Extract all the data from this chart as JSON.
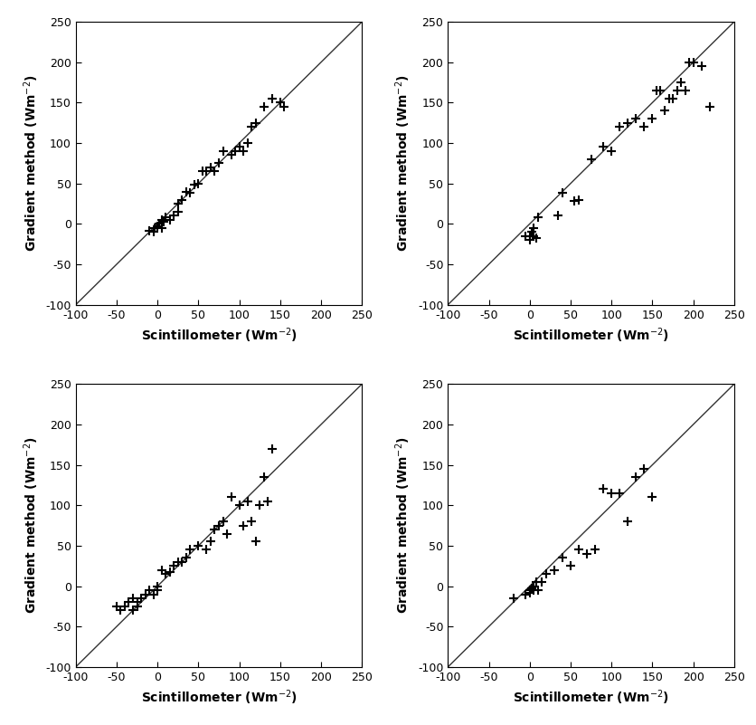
{
  "panels": [
    {
      "x": [
        -10,
        -5,
        -3,
        0,
        2,
        5,
        5,
        8,
        10,
        15,
        20,
        25,
        25,
        30,
        35,
        40,
        45,
        50,
        55,
        60,
        65,
        70,
        75,
        80,
        90,
        95,
        100,
        105,
        110,
        115,
        120,
        130,
        140,
        150,
        155
      ],
      "y": [
        -8,
        -10,
        -5,
        -3,
        0,
        -5,
        5,
        3,
        8,
        5,
        10,
        15,
        25,
        30,
        40,
        38,
        48,
        50,
        65,
        65,
        70,
        65,
        75,
        90,
        85,
        90,
        95,
        90,
        100,
        120,
        125,
        145,
        155,
        150,
        145
      ],
      "xlim": [
        -100,
        250
      ],
      "ylim": [
        -100,
        250
      ],
      "xticks": [
        -100,
        -50,
        0,
        50,
        100,
        150,
        200,
        250
      ],
      "yticks": [
        -100,
        -50,
        0,
        50,
        100,
        150,
        200,
        250
      ]
    },
    {
      "x": [
        -5,
        0,
        0,
        2,
        5,
        5,
        8,
        10,
        35,
        40,
        55,
        60,
        75,
        90,
        100,
        110,
        120,
        130,
        140,
        150,
        155,
        160,
        165,
        170,
        175,
        180,
        185,
        190,
        195,
        200,
        210,
        220
      ],
      "y": [
        -15,
        -20,
        -15,
        -10,
        -5,
        -15,
        -18,
        8,
        10,
        38,
        28,
        30,
        80,
        95,
        90,
        120,
        125,
        130,
        120,
        130,
        165,
        165,
        140,
        155,
        155,
        165,
        175,
        165,
        200,
        200,
        195,
        145
      ],
      "xlim": [
        -100,
        250
      ],
      "ylim": [
        -100,
        250
      ],
      "xticks": [
        -100,
        -50,
        0,
        50,
        100,
        150,
        200,
        250
      ],
      "yticks": [
        -100,
        -50,
        0,
        50,
        100,
        150,
        200,
        250
      ]
    },
    {
      "x": [
        -50,
        -45,
        -40,
        -35,
        -30,
        -30,
        -25,
        -25,
        -20,
        -15,
        -10,
        -5,
        0,
        0,
        5,
        10,
        15,
        20,
        25,
        30,
        35,
        40,
        50,
        60,
        65,
        70,
        75,
        80,
        85,
        90,
        100,
        105,
        110,
        115,
        120,
        125,
        130,
        135,
        140
      ],
      "y": [
        -25,
        -30,
        -25,
        -20,
        -15,
        -30,
        -20,
        -25,
        -15,
        -10,
        -5,
        -10,
        -5,
        0,
        20,
        15,
        18,
        25,
        30,
        30,
        35,
        45,
        50,
        45,
        55,
        70,
        75,
        80,
        65,
        110,
        100,
        75,
        105,
        80,
        55,
        100,
        135,
        105,
        170
      ],
      "xlim": [
        -100,
        250
      ],
      "ylim": [
        -100,
        250
      ],
      "xticks": [
        -100,
        -50,
        0,
        50,
        100,
        150,
        200,
        250
      ],
      "yticks": [
        -100,
        -50,
        0,
        50,
        100,
        150,
        200,
        250
      ]
    },
    {
      "x": [
        -20,
        -5,
        0,
        0,
        2,
        5,
        5,
        8,
        10,
        15,
        20,
        30,
        40,
        50,
        60,
        70,
        80,
        90,
        100,
        110,
        120,
        130,
        140,
        150
      ],
      "y": [
        -15,
        -10,
        -5,
        -8,
        -3,
        -5,
        0,
        5,
        -5,
        5,
        15,
        20,
        35,
        25,
        45,
        40,
        45,
        120,
        115,
        115,
        80,
        135,
        145,
        110
      ],
      "xlim": [
        -100,
        250
      ],
      "ylim": [
        -100,
        250
      ],
      "xticks": [
        -100,
        -50,
        0,
        50,
        100,
        150,
        200,
        250
      ],
      "yticks": [
        -100,
        -50,
        0,
        50,
        100,
        150,
        200,
        250
      ]
    }
  ],
  "xlabel": "Scintillometer (Wm$^{-2}$)",
  "ylabel": "Gradient method (Wm$^{-2}$)",
  "marker": "+",
  "marker_linewidth": 1.5,
  "marker_size": 7,
  "marker_color": "#000000",
  "line_color": "#333333",
  "line_width": 1.0,
  "background_color": "#ffffff",
  "tick_fontsize": 9,
  "label_fontsize": 10,
  "fig_width": 8.37,
  "fig_height": 8.01,
  "dpi": 100
}
